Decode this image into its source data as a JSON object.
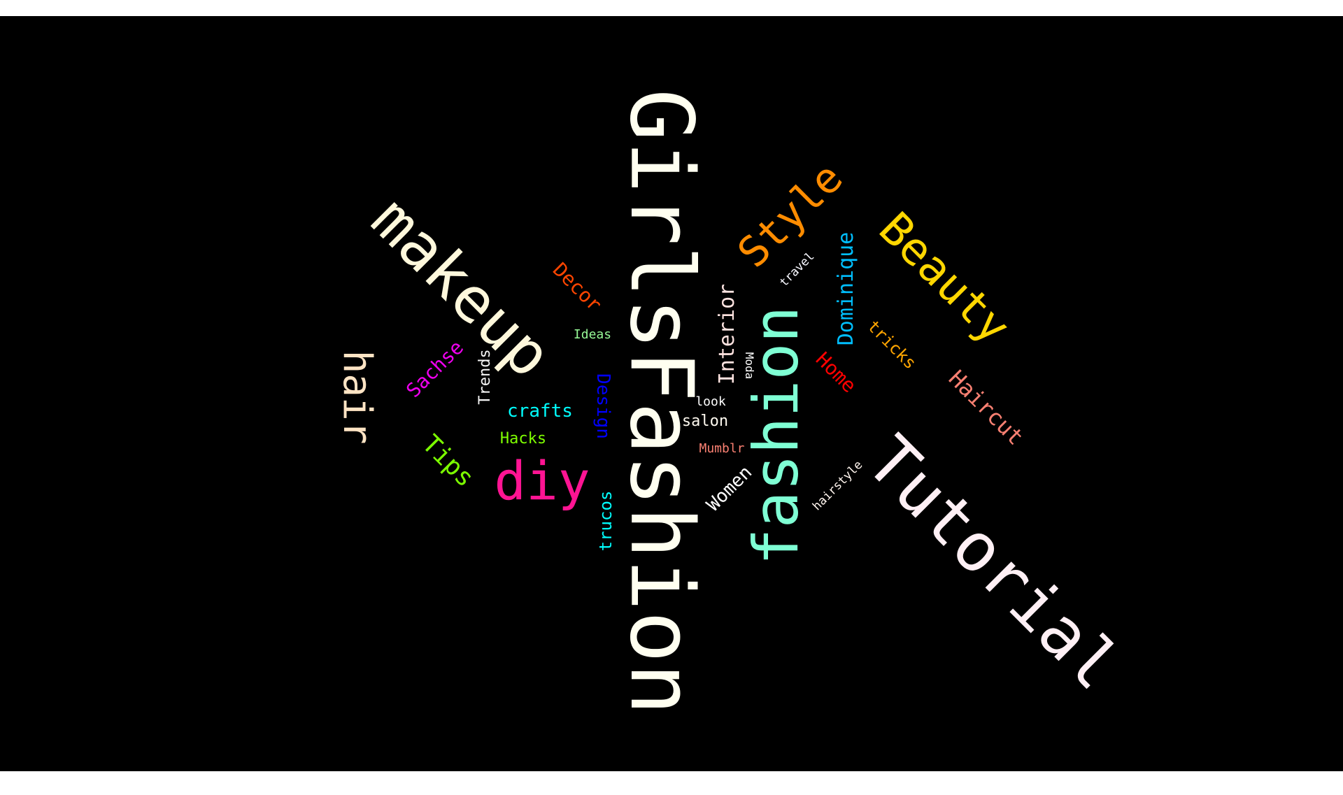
{
  "background": "#000000",
  "words": [
    {
      "text": "GirlsFashion",
      "color": "#fffff0"
    },
    {
      "text": "Tutorial",
      "color": "#fff0f5"
    },
    {
      "text": "makeup",
      "color": "#fff8dc"
    },
    {
      "text": "fashion",
      "color": "#7fffd4"
    },
    {
      "text": "Beauty",
      "color": "#ffd700"
    },
    {
      "text": "Style",
      "color": "#ff8c00"
    },
    {
      "text": "diy",
      "color": "#ff1493"
    },
    {
      "text": "hair",
      "color": "#ffe4c4"
    },
    {
      "text": "Haircut",
      "color": "#fa8072"
    },
    {
      "text": "Dominique",
      "color": "#00bfff"
    },
    {
      "text": "Decor",
      "color": "#ff4500"
    },
    {
      "text": "Tips",
      "color": "#7cfc00"
    },
    {
      "text": "Sachse",
      "color": "#ee00ee"
    },
    {
      "text": "Interior",
      "color": "#ffe4e1"
    },
    {
      "text": "Home",
      "color": "#ff0000"
    },
    {
      "text": "tricks",
      "color": "#ffa500"
    },
    {
      "text": "Design",
      "color": "#0000ff"
    },
    {
      "text": "crafts",
      "color": "#00ffff"
    },
    {
      "text": "Women",
      "color": "#ffffff"
    },
    {
      "text": "trucos",
      "color": "#00ffff"
    },
    {
      "text": "Trends",
      "color": "#f5f5f5"
    },
    {
      "text": "Hacks",
      "color": "#7fff00"
    },
    {
      "text": "salon",
      "color": "#fffaf0"
    },
    {
      "text": "Mumblr",
      "color": "#fa8072"
    },
    {
      "text": "look",
      "color": "#ffffff"
    },
    {
      "text": "Ideas",
      "color": "#98fb98"
    },
    {
      "text": "travel",
      "color": "#f8f8ff"
    },
    {
      "text": "hairstyle",
      "color": "#fff5ee"
    },
    {
      "text": "Moda",
      "color": "#ffffff"
    }
  ]
}
